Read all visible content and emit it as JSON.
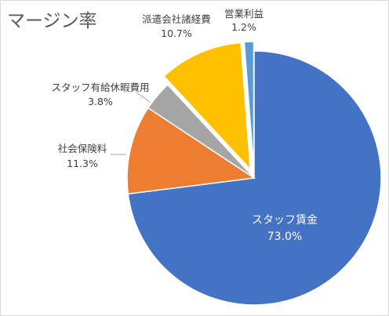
{
  "title": "マージン率",
  "chart_data": {
    "type": "pie",
    "title": "マージン率",
    "slices": [
      {
        "name": "スタッフ賃金",
        "value": 73.0,
        "label": "73.0%",
        "color": "#4472c4",
        "label_placement": "inside",
        "exploded": false
      },
      {
        "name": "社会保険料",
        "value": 11.3,
        "label": "11.3%",
        "color": "#ed7d31",
        "label_placement": "outside",
        "exploded": false
      },
      {
        "name": "スタッフ有給休暇費用",
        "value": 3.8,
        "label": "3.8%",
        "color": "#a5a5a5",
        "label_placement": "outside",
        "exploded": false
      },
      {
        "name": "派遣会社諸経費",
        "value": 10.7,
        "label": "10.7%",
        "color": "#ffc000",
        "label_placement": "outside",
        "exploded": true
      },
      {
        "name": "営業利益",
        "value": 1.2,
        "label": "1.2%",
        "color": "#5b9bd5",
        "label_placement": "outside",
        "exploded": true
      }
    ],
    "start_angle": "12 o'clock",
    "direction": "clockwise",
    "legend": "none"
  }
}
